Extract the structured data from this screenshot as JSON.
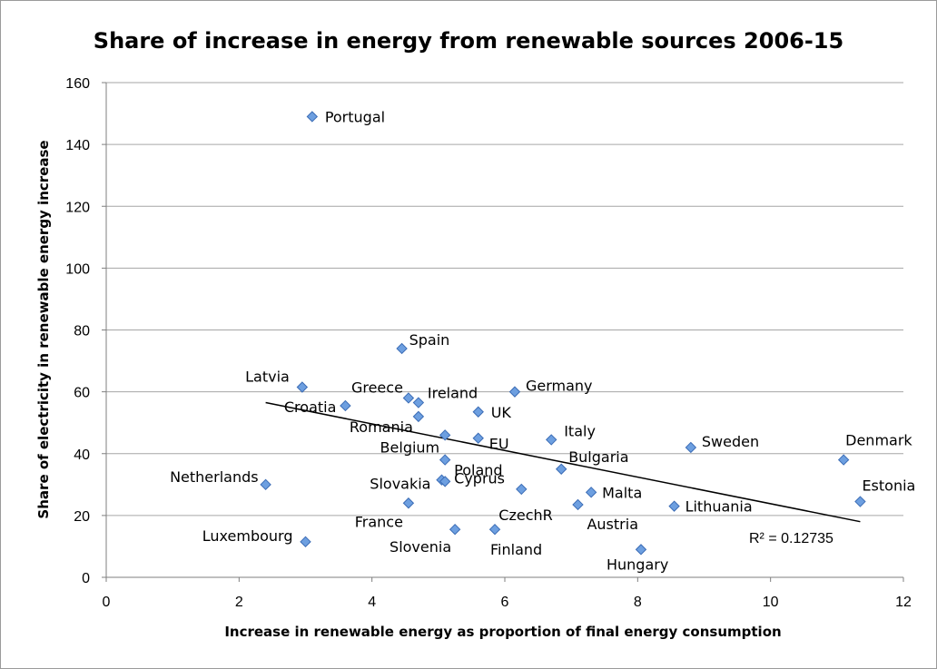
{
  "chart_data": {
    "type": "scatter",
    "title": "Share of increase in energy from renewable sources 2006-15",
    "xlabel": "Increase in renewable energy as proportion of final energy consumption",
    "ylabel": "Share of electricity in renewable energy increase",
    "xlim": [
      0,
      12
    ],
    "ylim": [
      0,
      160
    ],
    "xticks": [
      0,
      2,
      4,
      6,
      8,
      10,
      12
    ],
    "yticks": [
      0,
      20,
      40,
      60,
      80,
      100,
      120,
      140,
      160
    ],
    "grid": "horizontal",
    "legend": "none",
    "marker_color": "#6d9fe0",
    "points": [
      {
        "label": "Portugal",
        "x": 3.1,
        "y": 149
      },
      {
        "label": "Spain",
        "x": 4.45,
        "y": 74
      },
      {
        "label": "Latvia",
        "x": 2.95,
        "y": 61.5
      },
      {
        "label": "Greece",
        "x": 4.55,
        "y": 58
      },
      {
        "label": "Ireland",
        "x": 4.7,
        "y": 56.5
      },
      {
        "label": "Germany",
        "x": 6.15,
        "y": 60
      },
      {
        "label": "Croatia",
        "x": 3.6,
        "y": 55.5
      },
      {
        "label": "UK",
        "x": 5.6,
        "y": 53.5
      },
      {
        "label": "Romania",
        "x": 4.7,
        "y": 52
      },
      {
        "label": "Belgium",
        "x": 5.1,
        "y": 46
      },
      {
        "label": "EU",
        "x": 5.6,
        "y": 45
      },
      {
        "label": "Italy",
        "x": 6.7,
        "y": 44.5
      },
      {
        "label": "Sweden",
        "x": 8.8,
        "y": 42
      },
      {
        "label": "Denmark",
        "x": 11.1,
        "y": 38
      },
      {
        "label": "Poland",
        "x": 5.1,
        "y": 38
      },
      {
        "label": "Bulgaria",
        "x": 6.85,
        "y": 35
      },
      {
        "label": "Netherlands",
        "x": 2.4,
        "y": 30
      },
      {
        "label": "Slovakia",
        "x": 5.05,
        "y": 31.5
      },
      {
        "label": "Cyprus",
        "x": 5.1,
        "y": 31
      },
      {
        "label": "CzechR",
        "x": 6.25,
        "y": 28.5
      },
      {
        "label": "Malta",
        "x": 7.3,
        "y": 27.5
      },
      {
        "label": "Estonia",
        "x": 11.35,
        "y": 24.5
      },
      {
        "label": "France",
        "x": 4.55,
        "y": 24
      },
      {
        "label": "Austria",
        "x": 7.1,
        "y": 23.5
      },
      {
        "label": "Lithuania",
        "x": 8.55,
        "y": 23
      },
      {
        "label": "Slovenia",
        "x": 5.25,
        "y": 15.5
      },
      {
        "label": "Finland",
        "x": 5.85,
        "y": 15.5
      },
      {
        "label": "Luxembourg",
        "x": 3.0,
        "y": 11.5
      },
      {
        "label": "Hungary",
        "x": 8.05,
        "y": 9
      }
    ],
    "trendline": {
      "type": "linear",
      "x_start": 2.4,
      "y_start": 56.5,
      "x_end": 11.35,
      "y_end": 18
    },
    "annotations": [
      "R² = 0.12735"
    ]
  }
}
